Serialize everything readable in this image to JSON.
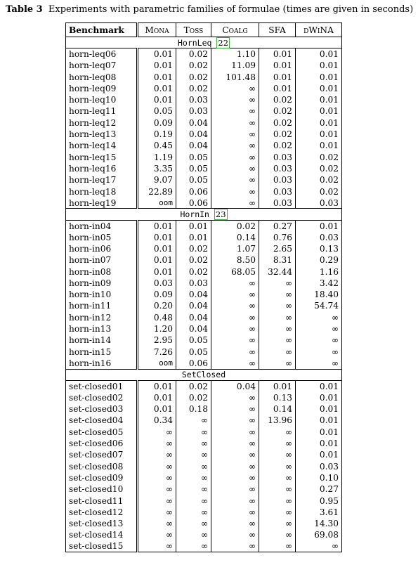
{
  "caption": {
    "label": "Table 3",
    "text": "Experiments with parametric families of formulae (times are given in seconds)"
  },
  "columns": [
    "Benchmark",
    "Mona",
    "Toss",
    "Coalg",
    "SFA",
    "dWiNA"
  ],
  "sections": [
    {
      "title": "HornLeq",
      "cite": "22",
      "rows": [
        [
          "horn-leq06",
          "0.01",
          "0.02",
          "1.10",
          "0.01",
          "0.01"
        ],
        [
          "horn-leq07",
          "0.01",
          "0.02",
          "11.09",
          "0.01",
          "0.01"
        ],
        [
          "horn-leq08",
          "0.01",
          "0.02",
          "101.48",
          "0.01",
          "0.01"
        ],
        [
          "horn-leq09",
          "0.01",
          "0.02",
          "∞",
          "0.01",
          "0.01"
        ],
        [
          "horn-leq10",
          "0.01",
          "0.03",
          "∞",
          "0.02",
          "0.01"
        ],
        [
          "horn-leq11",
          "0.05",
          "0.03",
          "∞",
          "0.02",
          "0.01"
        ],
        [
          "horn-leq12",
          "0.09",
          "0.04",
          "∞",
          "0.02",
          "0.01"
        ],
        [
          "horn-leq13",
          "0.19",
          "0.04",
          "∞",
          "0.02",
          "0.01"
        ],
        [
          "horn-leq14",
          "0.45",
          "0.04",
          "∞",
          "0.02",
          "0.01"
        ],
        [
          "horn-leq15",
          "1.19",
          "0.05",
          "∞",
          "0.03",
          "0.02"
        ],
        [
          "horn-leq16",
          "3.35",
          "0.05",
          "∞",
          "0.03",
          "0.02"
        ],
        [
          "horn-leq17",
          "9.07",
          "0.05",
          "∞",
          "0.03",
          "0.02"
        ],
        [
          "horn-leq18",
          "22.89",
          "0.06",
          "∞",
          "0.03",
          "0.02"
        ],
        [
          "horn-leq19",
          "oom",
          "0.06",
          "∞",
          "0.03",
          "0.03"
        ]
      ]
    },
    {
      "title": "HornIn",
      "cite": "23",
      "rows": [
        [
          "horn-in04",
          "0.01",
          "0.01",
          "0.02",
          "0.27",
          "0.01"
        ],
        [
          "horn-in05",
          "0.01",
          "0.01",
          "0.14",
          "0.76",
          "0.03"
        ],
        [
          "horn-in06",
          "0.01",
          "0.02",
          "1.07",
          "2.65",
          "0.13"
        ],
        [
          "horn-in07",
          "0.01",
          "0.02",
          "8.50",
          "8.31",
          "0.29"
        ],
        [
          "horn-in08",
          "0.01",
          "0.02",
          "68.05",
          "32.44",
          "1.16"
        ],
        [
          "horn-in09",
          "0.03",
          "0.03",
          "∞",
          "∞",
          "3.42"
        ],
        [
          "horn-in10",
          "0.09",
          "0.04",
          "∞",
          "∞",
          "18.40"
        ],
        [
          "horn-in11",
          "0.20",
          "0.04",
          "∞",
          "∞",
          "54.74"
        ],
        [
          "horn-in12",
          "0.48",
          "0.04",
          "∞",
          "∞",
          "∞"
        ],
        [
          "horn-in13",
          "1.20",
          "0.04",
          "∞",
          "∞",
          "∞"
        ],
        [
          "horn-in14",
          "2.95",
          "0.05",
          "∞",
          "∞",
          "∞"
        ],
        [
          "horn-in15",
          "7.26",
          "0.05",
          "∞",
          "∞",
          "∞"
        ],
        [
          "horn-in16",
          "oom",
          "0.06",
          "∞",
          "∞",
          "∞"
        ]
      ]
    },
    {
      "title": "SetClosed",
      "cite": "",
      "rows": [
        [
          "set-closed01",
          "0.01",
          "0.02",
          "0.04",
          "0.01",
          "0.01"
        ],
        [
          "set-closed02",
          "0.01",
          "0.02",
          "∞",
          "0.13",
          "0.01"
        ],
        [
          "set-closed03",
          "0.01",
          "0.18",
          "∞",
          "0.14",
          "0.01"
        ],
        [
          "set-closed04",
          "0.34",
          "∞",
          "∞",
          "13.96",
          "0.01"
        ],
        [
          "set-closed05",
          "∞",
          "∞",
          "∞",
          "∞",
          "0.01"
        ],
        [
          "set-closed06",
          "∞",
          "∞",
          "∞",
          "∞",
          "0.01"
        ],
        [
          "set-closed07",
          "∞",
          "∞",
          "∞",
          "∞",
          "0.01"
        ],
        [
          "set-closed08",
          "∞",
          "∞",
          "∞",
          "∞",
          "0.03"
        ],
        [
          "set-closed09",
          "∞",
          "∞",
          "∞",
          "∞",
          "0.10"
        ],
        [
          "set-closed10",
          "∞",
          "∞",
          "∞",
          "∞",
          "0.27"
        ],
        [
          "set-closed11",
          "∞",
          "∞",
          "∞",
          "∞",
          "0.95"
        ],
        [
          "set-closed12",
          "∞",
          "∞",
          "∞",
          "∞",
          "3.61"
        ],
        [
          "set-closed13",
          "∞",
          "∞",
          "∞",
          "∞",
          "14.30"
        ],
        [
          "set-closed14",
          "∞",
          "∞",
          "∞",
          "∞",
          "69.08"
        ],
        [
          "set-closed15",
          "∞",
          "∞",
          "∞",
          "∞",
          "∞"
        ]
      ]
    }
  ]
}
